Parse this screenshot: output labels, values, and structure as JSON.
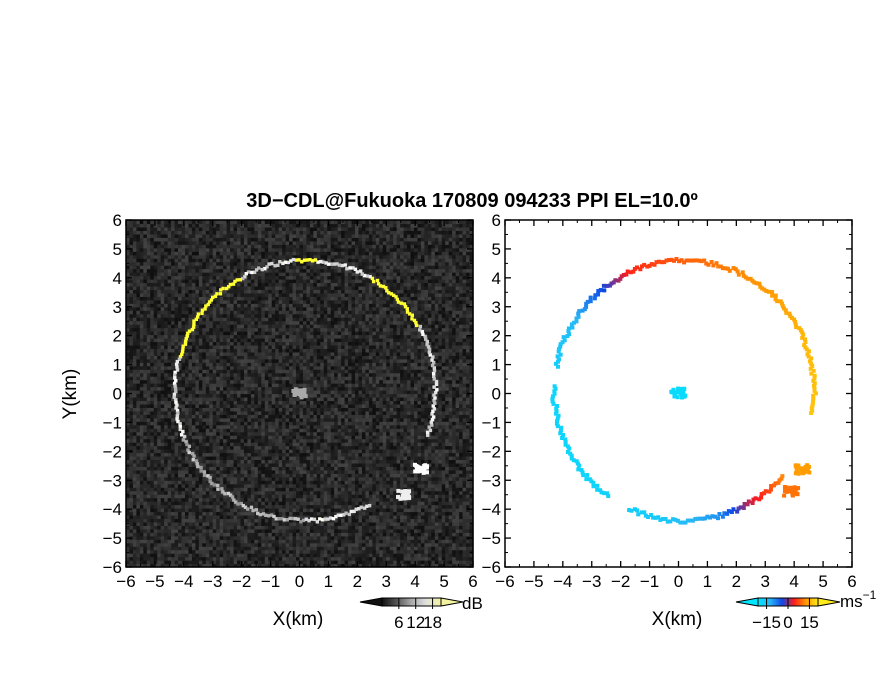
{
  "title": "3D−CDL@Fukuoka 170809 094233 PPI EL=10.0º",
  "chart_data": [
    {
      "type": "heatmap",
      "panel": "left",
      "quantity": "backscatter",
      "xlabel": "X(km)",
      "ylabel": "Y(km)",
      "xlim": [
        -6,
        6
      ],
      "ylim": [
        -6,
        6
      ],
      "xticks": [
        "−6",
        "−5",
        "−4",
        "−3",
        "−2",
        "−1",
        "0",
        "1",
        "2",
        "3",
        "4",
        "5",
        "6"
      ],
      "yticks": [
        "−6",
        "−5",
        "−4",
        "−3",
        "−2",
        "−1",
        "0",
        "1",
        "2",
        "3",
        "4",
        "5",
        "6"
      ],
      "colorscale": [
        "#000000",
        "#ffffff",
        "#ffff33"
      ],
      "background_level_dB": 3,
      "ring": {
        "center_km": [
          0.2,
          0.1
        ],
        "radius_km": 4.5,
        "arc_start_deg": -20,
        "arc_end_deg": 300,
        "level_dB": 14,
        "peak_level_dB": 18
      },
      "blobs": [
        {
          "x_km": 0.0,
          "y_km": 0.0,
          "level_dB": 10
        },
        {
          "x_km": 4.2,
          "y_km": -2.6,
          "level_dB": 15
        },
        {
          "x_km": 3.6,
          "y_km": -3.5,
          "level_dB": 14
        }
      ],
      "colorbar": {
        "label": "dB",
        "ticks": [
          "6",
          "12",
          "18"
        ],
        "tick_values": [
          6,
          12,
          18
        ],
        "range": [
          0,
          21
        ]
      }
    },
    {
      "type": "heatmap",
      "panel": "right",
      "quantity": "radial velocity",
      "xlabel": "X(km)",
      "ylabel": "",
      "xlim": [
        -6,
        6
      ],
      "ylim": [
        -6,
        6
      ],
      "xticks": [
        "−6",
        "−5",
        "−4",
        "−3",
        "−2",
        "−1",
        "0",
        "1",
        "2",
        "3",
        "4",
        "5",
        "6"
      ],
      "yticks": [
        "−6",
        "−5",
        "−4",
        "−3",
        "−2",
        "−1",
        "0",
        "1",
        "2",
        "3",
        "4",
        "5",
        "6"
      ],
      "colorscale": [
        "#00e5ff",
        "#29b6f6",
        "#0d47e6",
        "#ff1a1a",
        "#ff9900",
        "#ffeb1a"
      ],
      "ring_velocity_profile": [
        {
          "angle_deg": -10,
          "velocity_ms": 17
        },
        {
          "angle_deg": 20,
          "velocity_ms": 16
        },
        {
          "angle_deg": 60,
          "velocity_ms": 12
        },
        {
          "angle_deg": 90,
          "velocity_ms": 9
        },
        {
          "angle_deg": 115,
          "velocity_ms": 5
        },
        {
          "angle_deg": 130,
          "velocity_ms": -5
        },
        {
          "angle_deg": 150,
          "velocity_ms": -14
        },
        {
          "angle_deg": 180,
          "velocity_ms": -18
        },
        {
          "angle_deg": 225,
          "velocity_ms": -18
        },
        {
          "angle_deg": 260,
          "velocity_ms": -16
        },
        {
          "angle_deg": 285,
          "velocity_ms": -10
        },
        {
          "angle_deg": 300,
          "velocity_ms": 2
        },
        {
          "angle_deg": 320,
          "velocity_ms": 12
        }
      ],
      "blobs": [
        {
          "x_km": 0.0,
          "y_km": 0.0,
          "velocity_ms": -19
        },
        {
          "x_km": 4.3,
          "y_km": -2.6,
          "velocity_ms": 13
        },
        {
          "x_km": 3.9,
          "y_km": -3.4,
          "velocity_ms": 10
        }
      ],
      "colorbar": {
        "label": "ms",
        "label_exponent": "−1",
        "ticks": [
          "−15",
          "0",
          "15"
        ],
        "tick_values": [
          -15,
          0,
          15
        ],
        "range": [
          -21,
          21
        ]
      }
    }
  ]
}
